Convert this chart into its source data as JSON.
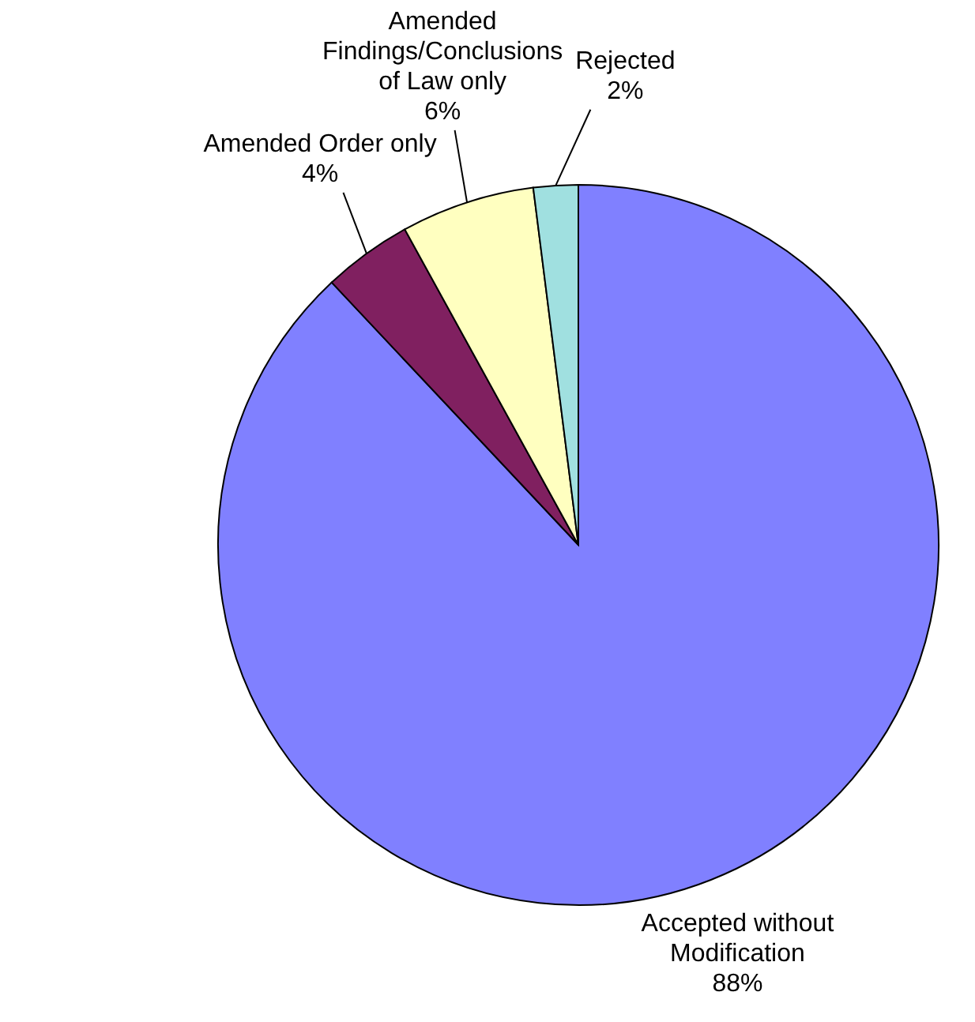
{
  "chart_data": {
    "type": "pie",
    "categories": [
      "Accepted without Modification",
      "Amended Order only",
      "Amended Findings/Conclusions of Law only",
      "Rejected"
    ],
    "values": [
      88,
      4,
      6,
      2
    ],
    "value_labels": [
      "88%",
      "4%",
      "6%",
      "2%"
    ],
    "colors": [
      "#8080ff",
      "#802060",
      "#ffffc0",
      "#a0e0e0"
    ]
  }
}
